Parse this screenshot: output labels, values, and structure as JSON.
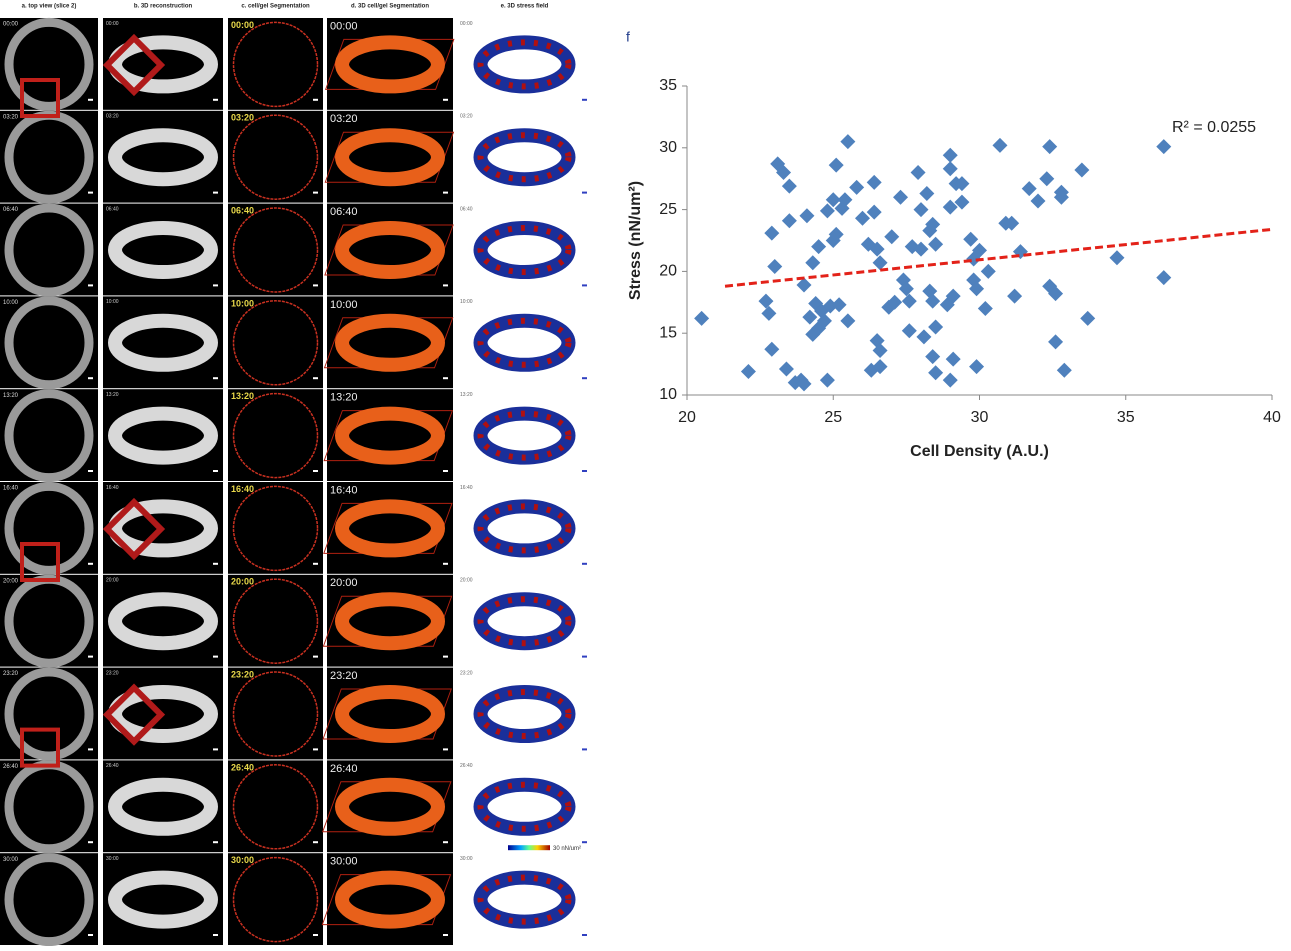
{
  "panels": {
    "headers": [
      "a. top view (slice 2)",
      "b. 3D reconstruction",
      "c. cell/gel Segmentation",
      "d. 3D cell/gel Segmentation",
      "e. 3D stress field"
    ],
    "times": [
      "00:00",
      "03:20",
      "06:40",
      "10:00",
      "13:20",
      "16:40",
      "20:00",
      "23:20",
      "26:40",
      "30:00"
    ],
    "colorbar_label": "30 nN/um²"
  },
  "chart_data": {
    "type": "scatter",
    "label": "f",
    "xlabel": "Cell Density (A.U.)",
    "ylabel": "Stress (nN/um²)",
    "annotation": "R² = 0.0255",
    "color": "#4f81bd",
    "x": [
      20.5,
      22.1,
      22.7,
      22.8,
      22.9,
      22.9,
      23.0,
      23.1,
      23.3,
      23.4,
      23.5,
      23.5,
      23.7,
      23.9,
      24.0,
      24.0,
      24.1,
      24.2,
      24.3,
      24.3,
      24.4,
      24.5,
      24.5,
      24.6,
      24.7,
      24.8,
      24.8,
      24.9,
      25.0,
      25.0,
      25.1,
      25.1,
      25.2,
      25.3,
      25.4,
      25.5,
      25.5,
      25.8,
      26.0,
      26.2,
      26.3,
      26.4,
      26.4,
      26.5,
      26.5,
      26.6,
      26.6,
      26.6,
      26.9,
      27.0,
      27.1,
      27.3,
      27.4,
      27.5,
      27.6,
      27.6,
      27.7,
      27.9,
      28.0,
      28.0,
      28.1,
      28.2,
      28.3,
      28.3,
      28.4,
      28.4,
      28.4,
      28.5,
      28.5,
      28.5,
      28.9,
      29.0,
      29.0,
      29.0,
      29.0,
      29.1,
      29.1,
      29.2,
      29.4,
      29.4,
      29.7,
      29.8,
      29.8,
      29.9,
      29.9,
      30.0,
      30.2,
      30.3,
      30.7,
      30.9,
      31.1,
      31.2,
      31.4,
      31.7,
      32.0,
      32.3,
      32.4,
      32.4,
      32.6,
      32.6,
      32.8,
      32.8,
      32.9,
      33.5,
      33.7,
      34.7,
      36.3,
      36.3
    ],
    "values": [
      16.2,
      11.9,
      17.6,
      16.6,
      13.7,
      23.1,
      20.4,
      28.7,
      28.0,
      12.1,
      26.9,
      24.1,
      11.0,
      11.2,
      10.9,
      18.9,
      24.5,
      16.3,
      20.7,
      14.9,
      17.4,
      15.4,
      22.0,
      16.8,
      16.0,
      11.2,
      24.9,
      17.2,
      22.5,
      25.8,
      23.0,
      28.6,
      17.3,
      25.1,
      25.8,
      30.5,
      16.0,
      26.8,
      24.3,
      22.2,
      12.0,
      27.2,
      24.8,
      14.4,
      21.8,
      20.7,
      13.6,
      12.3,
      17.1,
      22.8,
      17.5,
      26.0,
      19.3,
      18.6,
      15.2,
      17.6,
      22.0,
      28.0,
      25.0,
      21.8,
      14.7,
      26.3,
      23.3,
      18.4,
      23.8,
      17.6,
      13.1,
      15.5,
      11.8,
      22.2,
      17.3,
      29.4,
      28.3,
      25.2,
      11.2,
      18.0,
      12.9,
      27.1,
      27.1,
      25.6,
      22.6,
      21.0,
      19.3,
      12.3,
      18.6,
      21.7,
      17.0,
      20.0,
      30.2,
      23.9,
      23.9,
      18.0,
      21.6,
      26.7,
      25.7,
      27.5,
      30.1,
      18.8,
      14.3,
      18.2,
      26.4,
      26.0,
      12.0,
      28.2,
      16.2,
      21.1,
      30.1,
      19.5
    ],
    "trendline": {
      "x": [
        21.3,
        40
      ],
      "values": [
        18.8,
        23.4
      ],
      "color": "#e32219"
    },
    "xlim": [
      20,
      40
    ],
    "xticks": [
      20,
      25,
      30,
      35,
      40
    ],
    "ylim": [
      10,
      35
    ],
    "yticks": [
      10,
      15,
      20,
      25,
      30,
      35
    ]
  }
}
